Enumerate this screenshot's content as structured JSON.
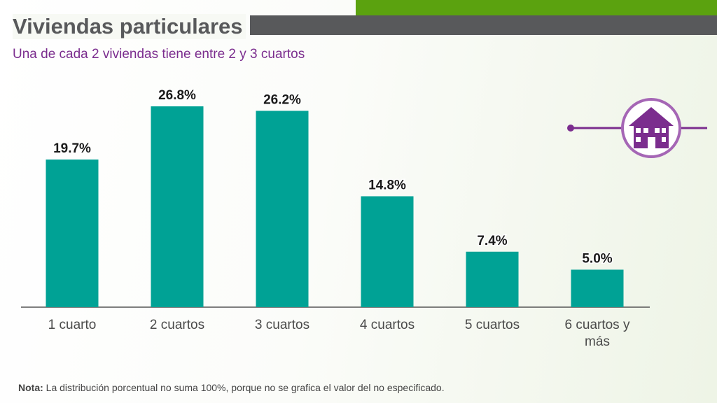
{
  "chart_data": {
    "type": "bar",
    "title": "Viviendas particulares",
    "subtitle": "Una de cada 2 viviendas tiene entre 2 y 3 cuartos",
    "categories": [
      "1 cuarto",
      "2 cuartos",
      "3 cuartos",
      "4 cuartos",
      "5 cuartos",
      "6 cuartos y más"
    ],
    "values": [
      19.7,
      26.8,
      26.2,
      14.8,
      7.4,
      5.0
    ],
    "value_labels": [
      "19.7%",
      "26.8%",
      "26.2%",
      "14.8%",
      "7.4%",
      "5.0%"
    ],
    "color": "#00a295",
    "note": {
      "label": "Nota:",
      "text": "La distribución porcentual no suma 100%, porque no se grafica el valor del no especificado."
    }
  }
}
